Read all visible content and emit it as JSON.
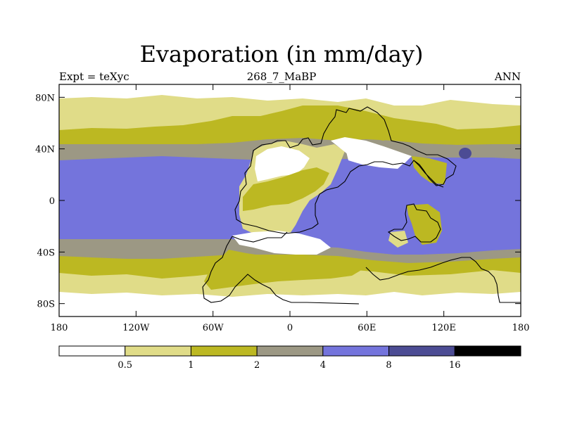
{
  "title": "Evaporation (in mm/day)",
  "subtitle_left": "Expt = teXyc",
  "subtitle_center": "268_7_MaBP",
  "subtitle_right": "ANN",
  "lat_ticks": [
    {
      "value": 80,
      "label": "80N"
    },
    {
      "value": 40,
      "label": "40N"
    },
    {
      "value": 0,
      "label": "0"
    },
    {
      "value": -40,
      "label": "40S"
    },
    {
      "value": -80,
      "label": "80S"
    }
  ],
  "lon_ticks": [
    {
      "value": -180,
      "label": "180"
    },
    {
      "value": -120,
      "label": "120W"
    },
    {
      "value": -60,
      "label": "60W"
    },
    {
      "value": 0,
      "label": "0"
    },
    {
      "value": 60,
      "label": "60E"
    },
    {
      "value": 120,
      "label": "120E"
    },
    {
      "value": 180,
      "label": "180"
    }
  ],
  "colorbar": {
    "boxes": [
      {
        "color": "#ffffff"
      },
      {
        "color": "#e0dc88"
      },
      {
        "color": "#bcb822"
      },
      {
        "color": "#9c9884"
      },
      {
        "color": "#7474dc"
      },
      {
        "color": "#4c4c94"
      },
      {
        "color": "#000000"
      }
    ],
    "labels": [
      "0.5",
      "1",
      "2",
      "4",
      "8",
      "16"
    ]
  },
  "colors": {
    "white": "#ffffff",
    "light": "#e0dc88",
    "olive": "#bcb822",
    "gray": "#9c9884",
    "blue": "#7474dc",
    "navy": "#4c4c94"
  }
}
